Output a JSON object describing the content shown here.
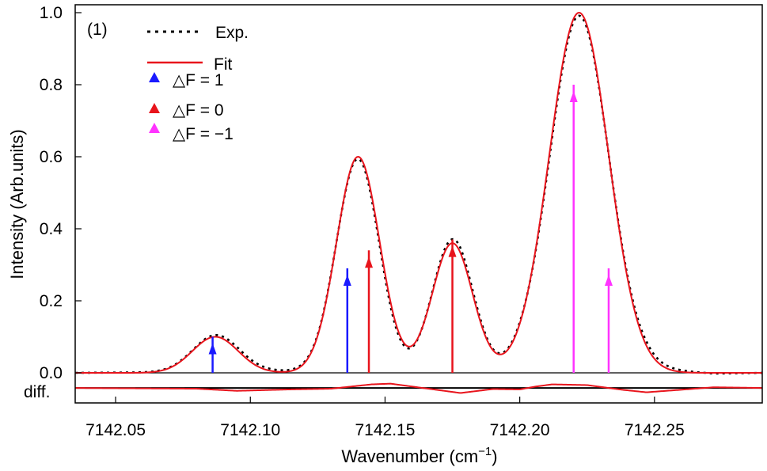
{
  "chart_data": {
    "type": "line",
    "panel_label": "(1)",
    "xlabel": "Wavenumber (cm",
    "xlabel_superscript": "−1",
    "xlabel_close": ")",
    "ylabel": "Intensity (Arb.units)",
    "diff_label": "diff.",
    "xlim": [
      7142.035,
      7142.29
    ],
    "ylim": [
      -0.07,
      1.0
    ],
    "x_ticks": [
      7142.05,
      7142.1,
      7142.15,
      7142.2,
      7142.25
    ],
    "x_tick_labels": [
      "7142.05",
      "7142.10",
      "7142.15",
      "7142.20",
      "7142.25"
    ],
    "y_ticks": [
      0.0,
      0.2,
      0.4,
      0.6,
      0.8,
      1.0
    ],
    "y_tick_labels": [
      "0.0",
      "0.2",
      "0.4",
      "0.6",
      "0.8",
      "1.0"
    ],
    "diff_offset": -0.042,
    "legend": {
      "position": "top-left",
      "exp_label": "Exp.",
      "fit_label": "Fit",
      "delta_f_plus1": "△F = 1",
      "delta_f_zero": "△F = 0",
      "delta_f_minus1": "△F = −1"
    },
    "colors": {
      "exp": "#000000",
      "fit": "#e8141c",
      "delta_f_plus1": "#1a1aff",
      "delta_f_zero": "#e8141c",
      "delta_f_minus1": "#ff33ff"
    },
    "peaks": [
      {
        "center": 7142.087,
        "amp": 0.1,
        "sigma": 0.0085
      },
      {
        "center": 7142.14,
        "amp": 0.6,
        "sigma": 0.008
      },
      {
        "center": 7142.175,
        "amp": 0.36,
        "sigma": 0.0075
      },
      {
        "center": 7142.222,
        "amp": 1.0,
        "sigma": 0.011
      }
    ],
    "transitions": [
      {
        "type": "delta_f_plus1",
        "x": 7142.086,
        "y": 0.1
      },
      {
        "type": "delta_f_plus1",
        "x": 7142.136,
        "y": 0.29
      },
      {
        "type": "delta_f_zero",
        "x": 7142.144,
        "y": 0.34
      },
      {
        "type": "delta_f_zero",
        "x": 7142.175,
        "y": 0.37
      },
      {
        "type": "delta_f_minus1",
        "x": 7142.22,
        "y": 0.8
      },
      {
        "type": "delta_f_minus1",
        "x": 7142.233,
        "y": 0.29
      }
    ],
    "residual": [
      {
        "x": 7142.035,
        "y": 0.0
      },
      {
        "x": 7142.08,
        "y": -0.002
      },
      {
        "x": 7142.095,
        "y": -0.008
      },
      {
        "x": 7142.115,
        "y": -0.004
      },
      {
        "x": 7142.13,
        "y": -0.002
      },
      {
        "x": 7142.145,
        "y": 0.01
      },
      {
        "x": 7142.152,
        "y": 0.012
      },
      {
        "x": 7142.162,
        "y": 0.002
      },
      {
        "x": 7142.178,
        "y": -0.014
      },
      {
        "x": 7142.19,
        "y": -0.003
      },
      {
        "x": 7142.2,
        "y": -0.004
      },
      {
        "x": 7142.206,
        "y": 0.004
      },
      {
        "x": 7142.212,
        "y": 0.01
      },
      {
        "x": 7142.225,
        "y": 0.008
      },
      {
        "x": 7142.238,
        "y": -0.005
      },
      {
        "x": 7142.247,
        "y": -0.012
      },
      {
        "x": 7142.258,
        "y": -0.006
      },
      {
        "x": 7142.272,
        "y": 0.002
      },
      {
        "x": 7142.29,
        "y": 0.0
      }
    ]
  }
}
